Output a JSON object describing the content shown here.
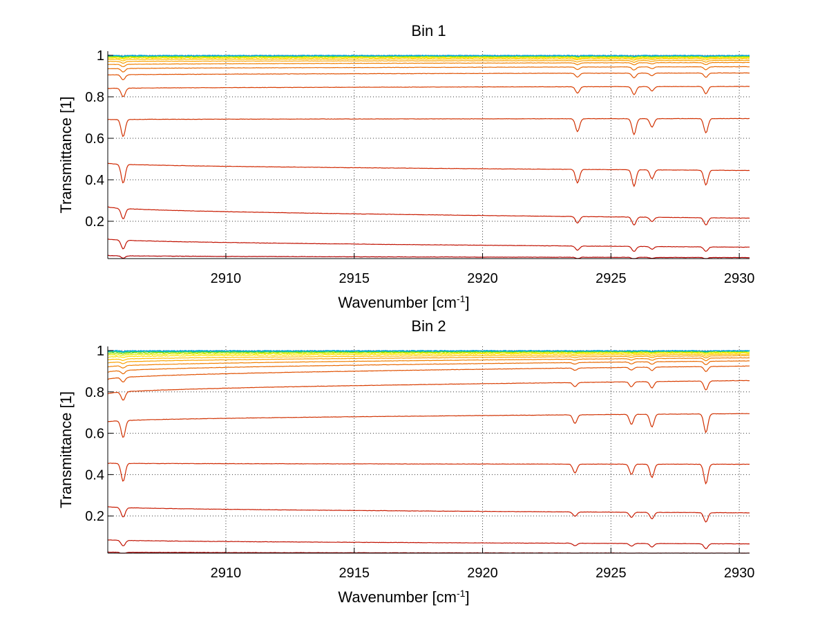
{
  "chart_data": [
    {
      "type": "line",
      "title": "Bin 1",
      "xlabel": "Wavenumber [cm",
      "xlabel_sup": "-1",
      "xlabel_end": "]",
      "ylabel": "Transmittance [1]",
      "xlim": [
        2905.4,
        2930.4
      ],
      "ylim": [
        0.02,
        1.02
      ],
      "xticks": [
        2910,
        2915,
        2920,
        2925,
        2930
      ],
      "xtick_labels": [
        "2910",
        "2915",
        "2920",
        "2925",
        "2930"
      ],
      "yticks": [
        0.2,
        0.4,
        0.6,
        0.8,
        1
      ],
      "ytick_labels": [
        "0.2",
        "0.4",
        "0.6",
        "0.8",
        "1"
      ],
      "grid": true,
      "dips": [
        {
          "x": 2906.0,
          "strength": 0.12
        },
        {
          "x": 2923.7,
          "strength": 0.09
        },
        {
          "x": 2925.9,
          "strength": 0.11
        },
        {
          "x": 2926.6,
          "strength": 0.06
        },
        {
          "x": 2928.7,
          "strength": 0.1
        }
      ],
      "series": [
        {
          "color": "#b00000",
          "baseline_start": 0.035,
          "baseline_end": 0.025
        },
        {
          "color": "#c01000",
          "baseline_start": 0.115,
          "baseline_end": 0.075
        },
        {
          "color": "#c81a00",
          "baseline_start": 0.27,
          "baseline_end": 0.215
        },
        {
          "color": "#d02800",
          "baseline_start": 0.48,
          "baseline_end": 0.445
        },
        {
          "color": "#d03000",
          "baseline_start": 0.69,
          "baseline_end": 0.695
        },
        {
          "color": "#d83c00",
          "baseline_start": 0.84,
          "baseline_end": 0.85
        },
        {
          "color": "#e05000",
          "baseline_start": 0.905,
          "baseline_end": 0.915
        },
        {
          "color": "#e86800",
          "baseline_start": 0.935,
          "baseline_end": 0.945
        },
        {
          "color": "#f08000",
          "baseline_start": 0.955,
          "baseline_end": 0.965
        },
        {
          "color": "#f8a000",
          "baseline_start": 0.97,
          "baseline_end": 0.975
        },
        {
          "color": "#ffc000",
          "baseline_start": 0.98,
          "baseline_end": 0.983
        },
        {
          "color": "#ffe000",
          "baseline_start": 0.987,
          "baseline_end": 0.988
        },
        {
          "color": "#e8f000",
          "baseline_start": 0.991,
          "baseline_end": 0.992
        },
        {
          "color": "#a0e000",
          "baseline_start": 0.994,
          "baseline_end": 0.995
        },
        {
          "color": "#40d040",
          "baseline_start": 0.996,
          "baseline_end": 0.997
        },
        {
          "color": "#00c0b0",
          "baseline_start": 0.998,
          "baseline_end": 0.998
        },
        {
          "color": "#00a0e0",
          "baseline_start": 0.999,
          "baseline_end": 0.999
        }
      ]
    },
    {
      "type": "line",
      "title": "Bin 2",
      "xlabel": "Wavenumber [cm",
      "xlabel_sup": "-1",
      "xlabel_end": "]",
      "ylabel": "Transmittance [1]",
      "xlim": [
        2905.4,
        2930.4
      ],
      "ylim": [
        0.02,
        1.02
      ],
      "xticks": [
        2910,
        2915,
        2920,
        2925,
        2930
      ],
      "xtick_labels": [
        "2910",
        "2915",
        "2920",
        "2925",
        "2930"
      ],
      "yticks": [
        0.2,
        0.4,
        0.6,
        0.8,
        1
      ],
      "ytick_labels": [
        "0.2",
        "0.4",
        "0.6",
        "0.8",
        "1"
      ],
      "grid": true,
      "dips": [
        {
          "x": 2906.0,
          "strength": 0.12
        },
        {
          "x": 2923.6,
          "strength": 0.06
        },
        {
          "x": 2925.8,
          "strength": 0.07
        },
        {
          "x": 2926.6,
          "strength": 0.09
        },
        {
          "x": 2928.7,
          "strength": 0.13
        }
      ],
      "series": [
        {
          "color": "#b00000",
          "baseline_start": 0.025,
          "baseline_end": 0.02
        },
        {
          "color": "#c01000",
          "baseline_start": 0.085,
          "baseline_end": 0.065
        },
        {
          "color": "#c81a00",
          "baseline_start": 0.245,
          "baseline_end": 0.215
        },
        {
          "color": "#d02800",
          "baseline_start": 0.455,
          "baseline_end": 0.45
        },
        {
          "color": "#d03000",
          "baseline_start": 0.655,
          "baseline_end": 0.695
        },
        {
          "color": "#d83c00",
          "baseline_start": 0.79,
          "baseline_end": 0.855
        },
        {
          "color": "#e05000",
          "baseline_start": 0.86,
          "baseline_end": 0.925
        },
        {
          "color": "#e86800",
          "baseline_start": 0.895,
          "baseline_end": 0.95
        },
        {
          "color": "#f08000",
          "baseline_start": 0.92,
          "baseline_end": 0.965
        },
        {
          "color": "#f8a000",
          "baseline_start": 0.94,
          "baseline_end": 0.975
        },
        {
          "color": "#ffc000",
          "baseline_start": 0.955,
          "baseline_end": 0.982
        },
        {
          "color": "#ffe000",
          "baseline_start": 0.968,
          "baseline_end": 0.988
        },
        {
          "color": "#e8f000",
          "baseline_start": 0.978,
          "baseline_end": 0.992
        },
        {
          "color": "#a0e000",
          "baseline_start": 0.986,
          "baseline_end": 0.995
        },
        {
          "color": "#40d040",
          "baseline_start": 0.992,
          "baseline_end": 0.997
        },
        {
          "color": "#00c0b0",
          "baseline_start": 0.996,
          "baseline_end": 0.998
        },
        {
          "color": "#00a0e0",
          "baseline_start": 0.999,
          "baseline_end": 0.999
        }
      ]
    }
  ]
}
